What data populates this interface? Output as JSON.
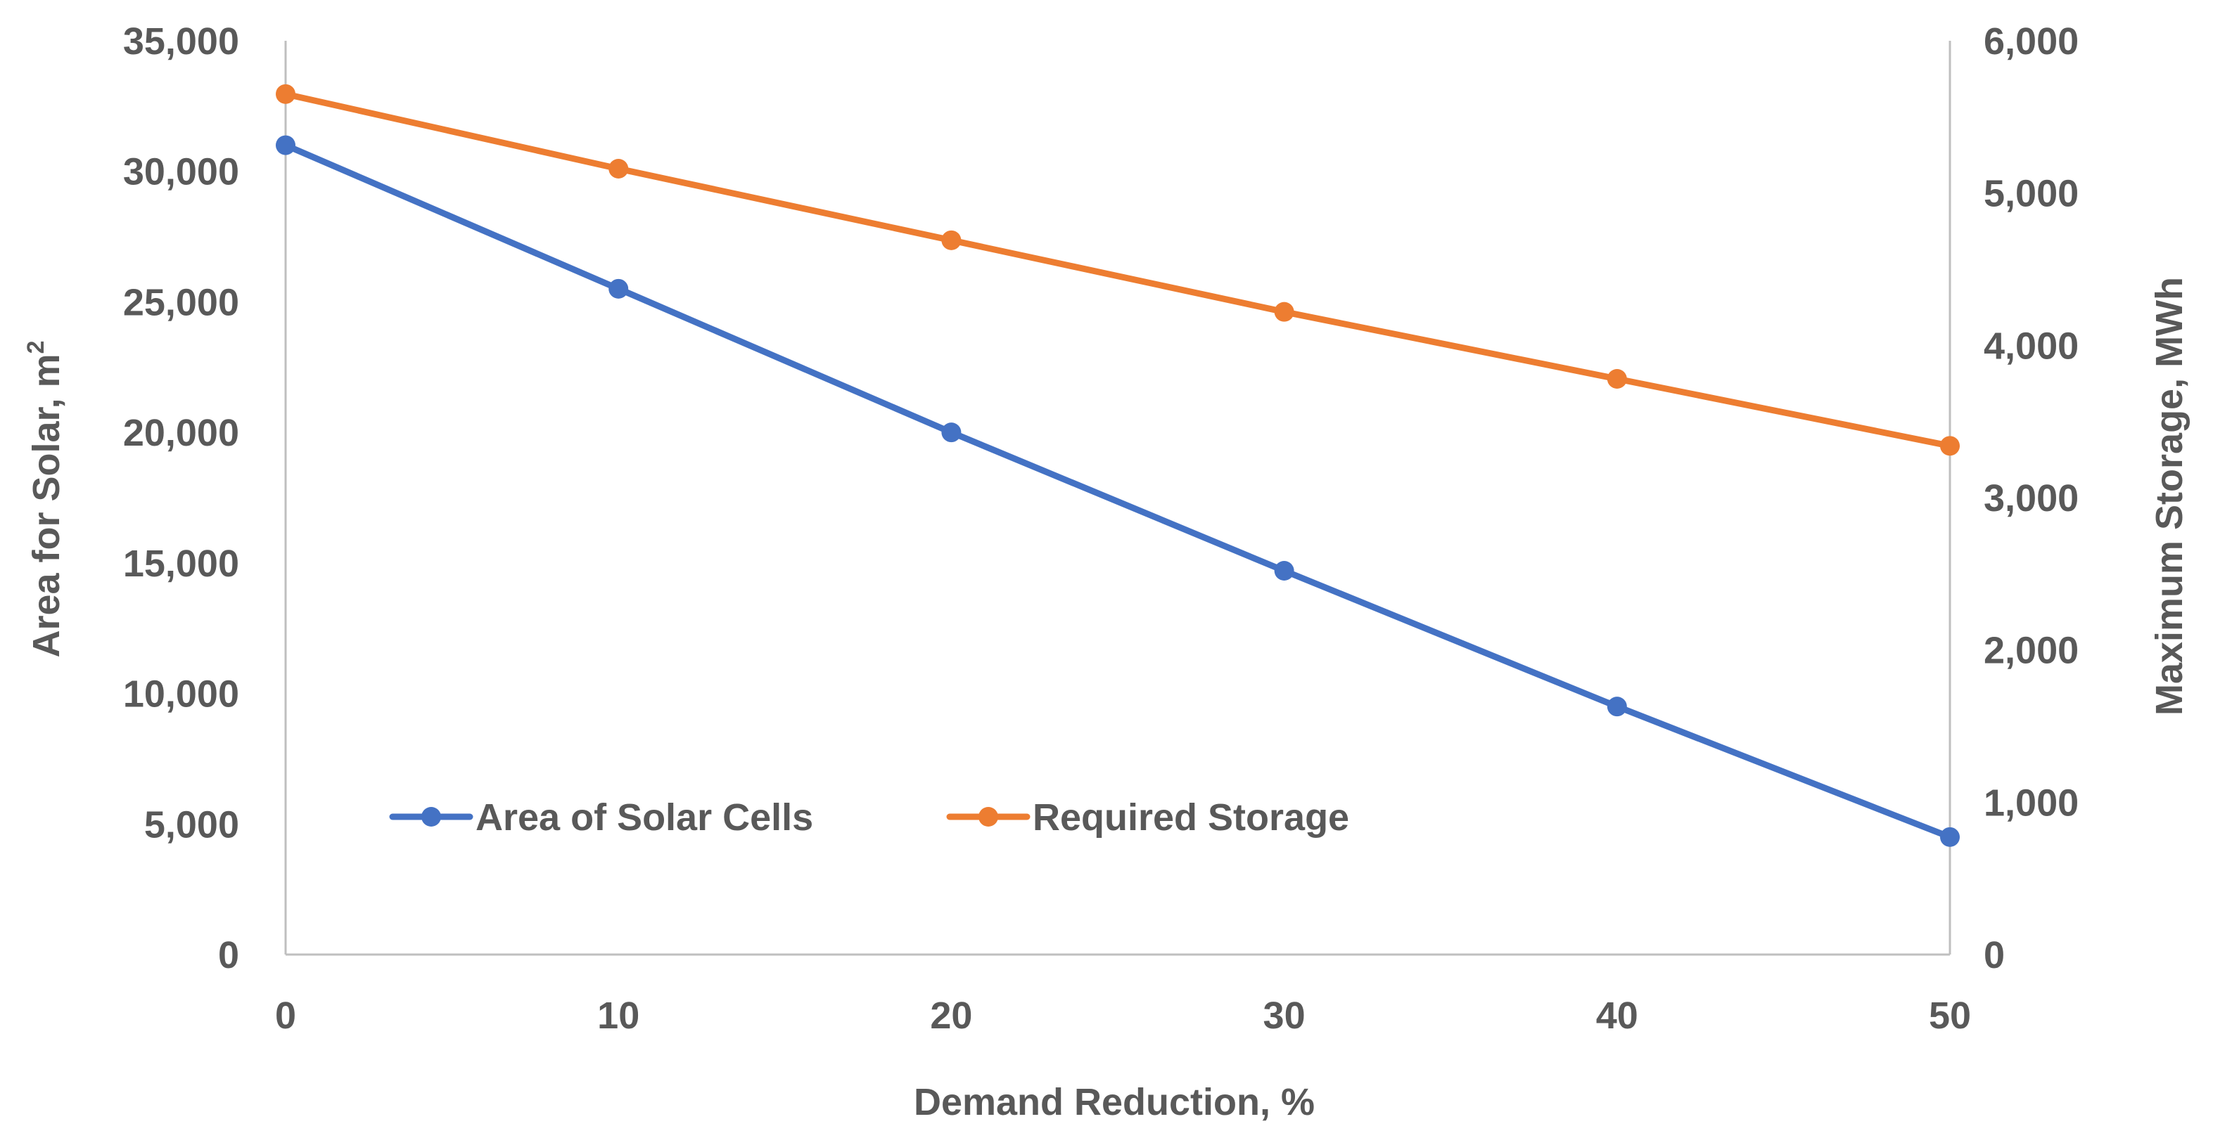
{
  "chart_data": {
    "type": "line",
    "x": [
      0,
      10,
      20,
      30,
      40,
      50
    ],
    "x_tick_labels": [
      "0",
      "10",
      "20",
      "30",
      "40",
      "50"
    ],
    "xlabel": "Demand Reduction, %",
    "ylabel_left_main": "Area for Solar, m",
    "ylabel_left_superscript": "2",
    "ylabel_right": "Maximum Storage, MWh",
    "ylim_left": [
      0,
      35000
    ],
    "ylim_right": [
      0,
      6000
    ],
    "y_left_tick_labels": [
      "0",
      "5,000",
      "10,000",
      "15,000",
      "20,000",
      "25,000",
      "30,000",
      "35,000"
    ],
    "y_right_tick_labels": [
      "0",
      "1,000",
      "2,000",
      "3,000",
      "4,000",
      "5,000",
      "6,000"
    ],
    "grid": false,
    "legend_position": "bottom-left",
    "series": [
      {
        "name": "Area of Solar Cells",
        "axis": "left",
        "color": "#4472c4",
        "values": [
          31000,
          25500,
          20000,
          14700,
          9500,
          4500
        ]
      },
      {
        "name": "Required Storage",
        "axis": "right",
        "color": "#ed7d31",
        "values": [
          5650,
          5160,
          4690,
          4220,
          3780,
          3340
        ]
      }
    ]
  }
}
